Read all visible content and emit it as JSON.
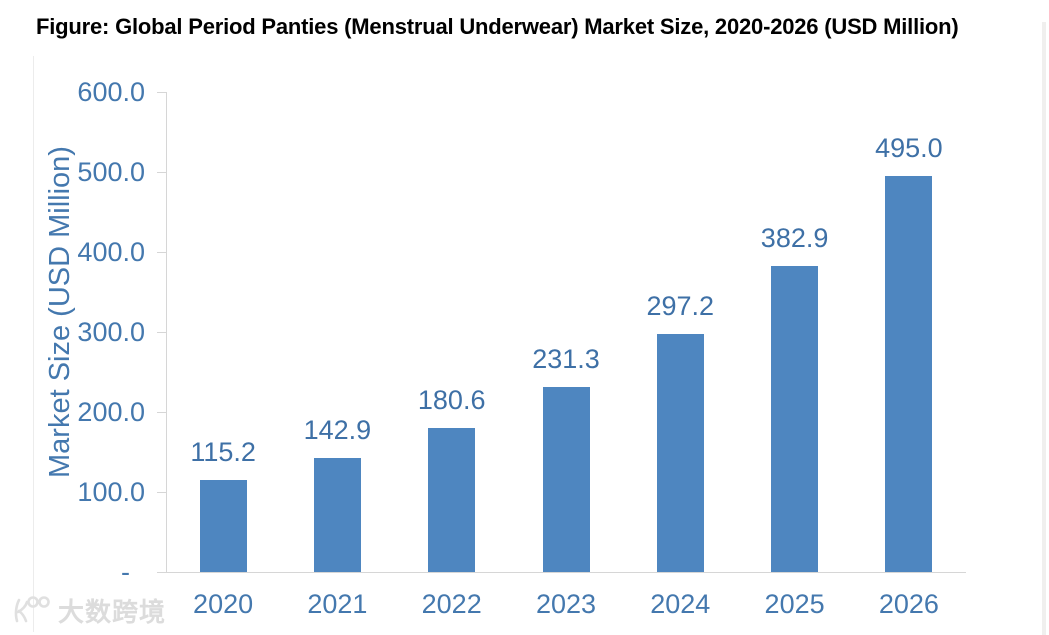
{
  "figure": {
    "title": "Figure: Global Period Panties (Menstrual Underwear) Market Size, 2020-2026 (USD Million)"
  },
  "watermark": {
    "logo_icon": "100-glasses-logo",
    "text": "大数跨境"
  },
  "chart_data": {
    "type": "bar",
    "title": "Figure: Global Period Panties (Menstrual Underwear) Market Size, 2020-2026 (USD Million)",
    "categories": [
      "2020",
      "2021",
      "2022",
      "2023",
      "2024",
      "2025",
      "2026"
    ],
    "values": [
      115.2,
      142.9,
      180.6,
      231.3,
      297.2,
      382.9,
      495.0
    ],
    "data_labels": [
      "115.2",
      "142.9",
      "180.6",
      "231.3",
      "297.2",
      "382.9",
      "495.0"
    ],
    "xlabel": "",
    "ylabel": "Market Size (USD Million)",
    "ylim": [
      0,
      600
    ],
    "y_tick_values": [
      600,
      500,
      400,
      300,
      200,
      100,
      0
    ],
    "y_tick_labels": [
      "600.0",
      "500.0",
      "400.0",
      "300.0",
      "200.0",
      "100.0",
      "-  "
    ],
    "grid": false,
    "legend": false,
    "colors": {
      "bar": "#4e86c0",
      "tick_text": "#4478ae",
      "data_label_text": "#3e70a6",
      "axis_line": "#d6d6d6"
    }
  }
}
